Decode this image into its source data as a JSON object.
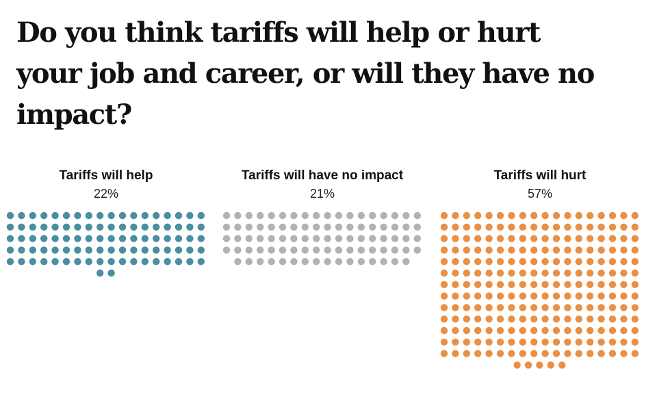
{
  "title": "Do you think tariffs will help or hurt your job and career, or will they have no impact?",
  "chart_data": {
    "type": "waffle",
    "title": "Do you think tariffs will help or hurt your job and career, or will they have no impact?",
    "unit": "percent of respondents",
    "categories": [
      {
        "label": "Tariffs will help",
        "value": 22,
        "value_label": "22%",
        "color": "#4a8ea1"
      },
      {
        "label": "Tariffs will have no impact",
        "value": 21,
        "value_label": "21%",
        "color": "#b2b2b2"
      },
      {
        "label": "Tariffs will hurt",
        "value": 57,
        "value_label": "57%",
        "color": "#ea8f44"
      }
    ]
  }
}
